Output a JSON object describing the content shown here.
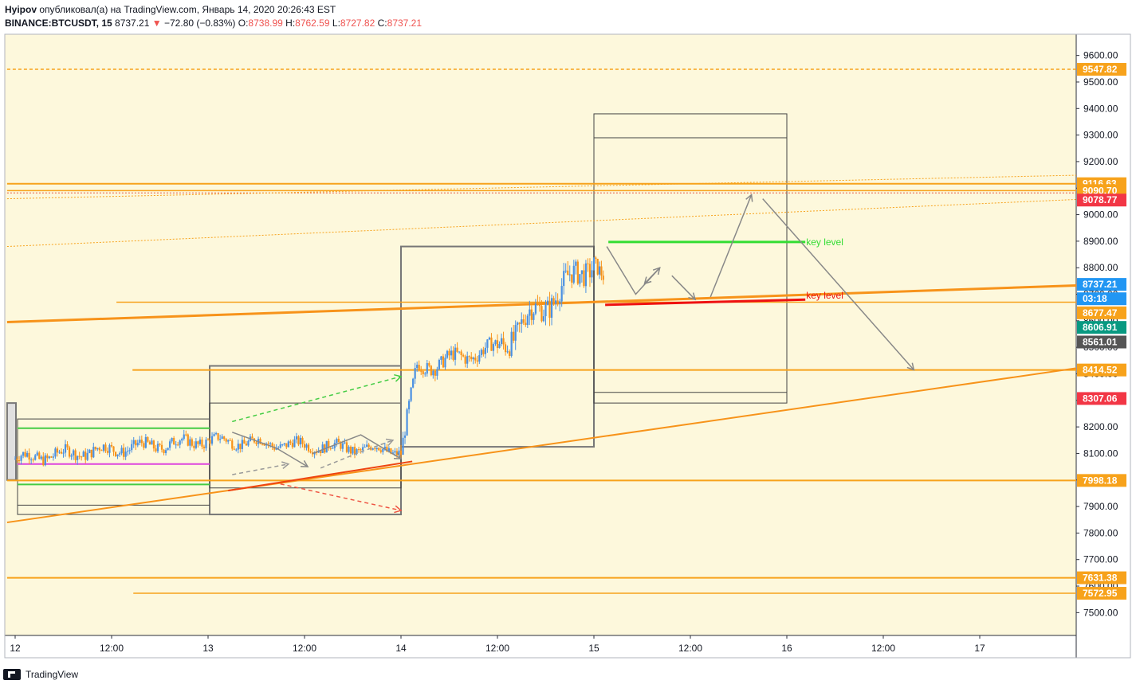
{
  "header": {
    "author": "Hyipov",
    "published": "опубликовал(а) на TradingView.com, Январь 14, 2020 20:26:43 EST",
    "symbol": "BINANCE:BTCUSDT, 15",
    "last": "8737.21",
    "change": "−72.80 (−0.83%)",
    "o_label": "O:",
    "o_value": "8738.99",
    "h_label": "H:",
    "h_value": "8762.59",
    "l_label": "L:",
    "l_value": "8727.82",
    "c_label": "C:",
    "c_value": "8737.21"
  },
  "footer": {
    "brand": "TradingView"
  },
  "chart_data": {
    "type": "candlestick",
    "y_axis": {
      "range": [
        7420,
        9650
      ],
      "ticks": [
        7500,
        7600,
        7700,
        7800,
        7900,
        8000,
        8100,
        8200,
        8300,
        8400,
        8500,
        8600,
        8700,
        8800,
        8900,
        9000,
        9100,
        9200,
        9300,
        9400,
        9500,
        9600
      ],
      "tick_labels": [
        "7500.00",
        "7600.00",
        "7700.00",
        "7800.00",
        "7900.00",
        "8000.00",
        "8100.00",
        "8200.00",
        "8300.00",
        "8400.00",
        "8500.00",
        "8600.00",
        "8700.00",
        "8800.00",
        "8900.00",
        "9000.00",
        "9100.00",
        "9200.00",
        "9300.00",
        "9400.00",
        "9500.00",
        "9600.00"
      ]
    },
    "x_axis": {
      "ticks": [
        {
          "t": 0,
          "label": "12"
        },
        {
          "t": 12,
          "label": "12:00"
        },
        {
          "t": 24,
          "label": "13"
        },
        {
          "t": 36,
          "label": "12:00"
        },
        {
          "t": 48,
          "label": "14"
        },
        {
          "t": 60,
          "label": "12:00"
        },
        {
          "t": 72,
          "label": "15"
        },
        {
          "t": 84,
          "label": "12:00"
        },
        {
          "t": 96,
          "label": "16"
        },
        {
          "t": 108,
          "label": "12:00"
        },
        {
          "t": 120,
          "label": "17"
        }
      ]
    },
    "price_labels": [
      {
        "value": "9547.82",
        "price": 9547.82,
        "color": "#f7a21b",
        "text_color": "#ffffff"
      },
      {
        "value": "9116.63",
        "price": 9116.63,
        "color": "#f7a21b",
        "text_color": "#ffffff"
      },
      {
        "value": "9090.70",
        "price": 9090.7,
        "color": "#f7a21b",
        "text_color": "#ffffff"
      },
      {
        "value": "9078.77",
        "price": 9055.0,
        "color": "#f23645",
        "text_color": "#ffffff"
      },
      {
        "value": "8737.21",
        "price": 8737.21,
        "color": "#2196f3",
        "text_color": "#ffffff"
      },
      {
        "value": "03:18",
        "price": 8683.0,
        "color": "#2196f3",
        "text_color": "#ffffff"
      },
      {
        "value": "8677.47",
        "price": 8630.0,
        "color": "#f7a21b",
        "text_color": "#ffffff"
      },
      {
        "value": "8606.91",
        "price": 8575.0,
        "color": "#089981",
        "text_color": "#ffffff"
      },
      {
        "value": "8561.01",
        "price": 8520.0,
        "color": "#555555",
        "text_color": "#ffffff"
      },
      {
        "value": "8414.52",
        "price": 8414.52,
        "color": "#f7a21b",
        "text_color": "#ffffff"
      },
      {
        "value": "8307.06",
        "price": 8307.06,
        "color": "#f23645",
        "text_color": "#ffffff"
      },
      {
        "value": "7998.18",
        "price": 7998.18,
        "color": "#f7a21b",
        "text_color": "#ffffff"
      },
      {
        "value": "7631.38",
        "price": 7631.38,
        "color": "#f7a21b",
        "text_color": "#ffffff"
      },
      {
        "value": "7572.95",
        "price": 7572.95,
        "color": "#f7a21b",
        "text_color": "#ffffff"
      }
    ],
    "horizontal_levels": [
      {
        "price": 9547.82,
        "t1": -1,
        "t2": 134,
        "color": "#f7a21b",
        "width": 1.5,
        "dash": "4,3"
      },
      {
        "price": 9116.63,
        "t1": -1,
        "t2": 134,
        "color": "#f7a21b",
        "width": 2
      },
      {
        "price": 9090.7,
        "t1": -1,
        "t2": 134,
        "color": "#f7a21b",
        "width": 1.5
      },
      {
        "price": 9082.0,
        "t1": -1,
        "t2": 134,
        "color": "#e5533c",
        "width": 1,
        "dash": "2,2"
      },
      {
        "price": 8670.0,
        "t1": 12.6,
        "t2": 134,
        "color": "#f7a21b",
        "width": 1.5
      },
      {
        "price": 8414.52,
        "t1": 14.6,
        "t2": 134,
        "color": "#f7a21b",
        "width": 2
      },
      {
        "price": 7998.18,
        "t1": -1,
        "t2": 134,
        "color": "#f7a21b",
        "width": 2
      },
      {
        "price": 7631.38,
        "t1": -1,
        "t2": 134,
        "color": "#f7a21b",
        "width": 2
      },
      {
        "price": 7572.95,
        "t1": 14.7,
        "t2": 134,
        "color": "#f7a21b",
        "width": 1.5
      }
    ],
    "trend_lines": [
      {
        "t1": -1,
        "p1": 8595,
        "t2": 134,
        "p2": 8735,
        "color": "#f7931a",
        "width": 3
      },
      {
        "t1": -1,
        "p1": 7840,
        "t2": 134,
        "p2": 8430,
        "color": "#f7931a",
        "width": 2
      },
      {
        "t1": -1,
        "p1": 9060,
        "t2": 134,
        "p2": 9150,
        "color": "#f7a21b",
        "width": 1,
        "dash": "2,2"
      },
      {
        "t1": -1,
        "p1": 8880,
        "t2": 134,
        "p2": 9060,
        "color": "#f7a21b",
        "width": 1,
        "dash": "2,2"
      },
      {
        "t1": 73.8,
        "p1": 8897,
        "t2": 98.3,
        "p2": 8897,
        "color": "#33dd33",
        "width": 3
      },
      {
        "t1": 73.4,
        "p1": 8660,
        "t2": 98.3,
        "p2": 8680,
        "color": "#ee1111",
        "width": 3
      },
      {
        "t1": 26.5,
        "p1": 7960,
        "t2": 49.4,
        "p2": 8070,
        "color": "#ee4411",
        "width": 2
      }
    ],
    "boxes": [
      {
        "t1": -1,
        "p1": 8290,
        "t2": 0.1,
        "p2": 8000,
        "stroke": "#777777",
        "fill": "#e0e0e0",
        "width": 2
      },
      {
        "t1": 0.3,
        "p1": 8230,
        "t2": 24.2,
        "p2": 7870,
        "stroke": "#444444",
        "fill": "none",
        "width": 1
      },
      {
        "t1": 24.2,
        "p1": 8430,
        "t2": 48.0,
        "p2": 7870,
        "stroke": "#777777",
        "fill": "none",
        "width": 2
      },
      {
        "t1": 24.2,
        "p1": 8290,
        "t2": 48.0,
        "p2": 7970,
        "stroke": "#444444",
        "fill": "none",
        "width": 1
      },
      {
        "t1": 48.0,
        "p1": 8880,
        "t2": 72.0,
        "p2": 8125,
        "stroke": "#777777",
        "fill": "none",
        "width": 2
      },
      {
        "t1": 72.0,
        "p1": 9380,
        "t2": 96.0,
        "p2": 8290,
        "stroke": "#444444",
        "fill": "none",
        "width": 1
      }
    ],
    "inner_box_lines": [
      {
        "t1": 0.3,
        "t2": 24.2,
        "price": 7905,
        "color": "#444444"
      },
      {
        "t1": 72.0,
        "t2": 96.0,
        "price": 9290,
        "color": "#444444"
      },
      {
        "t1": 72.0,
        "t2": 96.0,
        "price": 8330,
        "color": "#444444"
      }
    ],
    "range_lines": [
      {
        "t1": 0.3,
        "t2": 24.2,
        "price": 8195,
        "color": "#44cc44",
        "width": 2
      },
      {
        "t1": 0.3,
        "t2": 24.2,
        "price": 7983,
        "color": "#44cc44",
        "width": 2
      },
      {
        "t1": 0.3,
        "t2": 24.2,
        "price": 8060,
        "color": "#dd44dd",
        "width": 2
      }
    ],
    "arrows": [
      {
        "points": [
          [
            73.6,
            8880
          ],
          [
            77.2,
            8700
          ],
          [
            80.2,
            8800
          ]
        ],
        "color": "#888888",
        "width": 1.5
      },
      {
        "points": [
          [
            80.2,
            8800
          ],
          [
            78.3,
            8740
          ]
        ],
        "color": "#888888",
        "width": 1.5
      },
      {
        "points": [
          [
            81.7,
            8770
          ],
          [
            84.6,
            8680
          ]
        ],
        "color": "#888888",
        "width": 1.5
      },
      {
        "points": [
          [
            86.5,
            8690
          ],
          [
            91.6,
            9075
          ]
        ],
        "color": "#888888",
        "width": 1.5
      },
      {
        "points": [
          [
            93.0,
            9060
          ],
          [
            111.8,
            8415
          ]
        ],
        "color": "#888888",
        "width": 1.5
      },
      {
        "points": [
          [
            27.0,
            8220
          ],
          [
            48.0,
            8390
          ]
        ],
        "color": "#44cc44",
        "width": 1.5,
        "dash": "5,4"
      },
      {
        "points": [
          [
            33.0,
            7985
          ],
          [
            48.0,
            7885
          ]
        ],
        "color": "#ee5544",
        "width": 1.5,
        "dash": "5,4"
      },
      {
        "points": [
          [
            27.0,
            8180
          ],
          [
            32.5,
            8120
          ],
          [
            36.4,
            8050
          ]
        ],
        "color": "#888888",
        "width": 1.5
      },
      {
        "points": [
          [
            37.0,
            8100
          ],
          [
            43.0,
            8170
          ],
          [
            48.0,
            8080
          ]
        ],
        "color": "#888888",
        "width": 1.5
      },
      {
        "points": [
          [
            38.0,
            8045
          ],
          [
            42.5,
            8100
          ],
          [
            47.0,
            8150
          ]
        ],
        "color": "#999999",
        "width": 1.5,
        "dash": "5,4"
      },
      {
        "points": [
          [
            27.0,
            8020
          ],
          [
            34.0,
            8060
          ]
        ],
        "color": "#999999",
        "width": 1.5,
        "dash": "5,4"
      }
    ],
    "annotations": [
      {
        "text": "key level",
        "t": 98.4,
        "price": 8920,
        "color": "#33dd33"
      },
      {
        "text": "key level",
        "t": 98.4,
        "price": 8720,
        "color": "#ee1111"
      }
    ],
    "candle_segments": [
      {
        "t1": 0.0,
        "t2": 24.0,
        "start": 8080,
        "end": 8150,
        "amp": 45
      },
      {
        "t1": 24.0,
        "t2": 48.0,
        "start": 8150,
        "end": 8110,
        "amp": 40
      },
      {
        "t1": 48.0,
        "t2": 50.0,
        "start": 8110,
        "end": 8420,
        "amp": 60
      },
      {
        "t1": 50.0,
        "t2": 60.0,
        "start": 8420,
        "end": 8500,
        "amp": 55
      },
      {
        "t1": 60.0,
        "t2": 72.0,
        "start": 8500,
        "end": 8830,
        "amp": 90
      },
      {
        "t1": 72.0,
        "t2": 73.4,
        "start": 8830,
        "end": 8737,
        "amp": 60
      }
    ]
  }
}
